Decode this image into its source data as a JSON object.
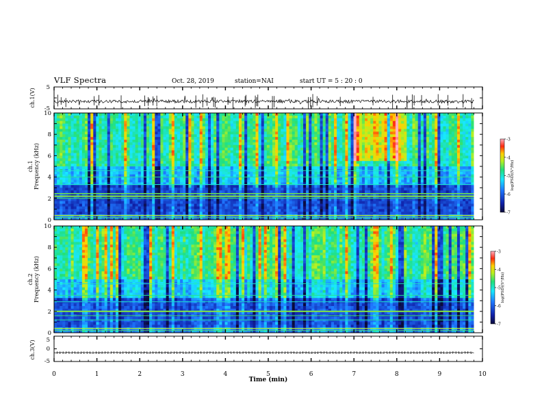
{
  "header": {
    "title": "VLF Spectra",
    "date": "Oct. 28, 2019",
    "station": "station=NAI",
    "start": "start UT = 5 : 20 : 0"
  },
  "chart_data": [
    {
      "type": "line",
      "name": "ch1-waveform",
      "ylabel": "ch.1(V)",
      "ylim": [
        -5,
        5
      ],
      "yticks": [
        "5",
        "-5"
      ],
      "xlim": [
        0,
        10
      ],
      "baseline": -1.6
    },
    {
      "type": "heatmap",
      "name": "ch1-spectrogram",
      "ylabel_channel": "ch.1",
      "ylabel": "Frequency (kHz)",
      "ylim": [
        0,
        10
      ],
      "yticks": [
        "0",
        "2",
        "4",
        "6",
        "8",
        "10"
      ],
      "xlim": [
        0,
        10
      ],
      "data_until_min": 9.8,
      "colorbar": {
        "label": "log(PSD)(V²/Hz)",
        "range": [
          -7,
          -3
        ],
        "ticks": [
          "-3",
          "-4",
          "-5",
          "-6",
          "-7"
        ]
      }
    },
    {
      "type": "heatmap",
      "name": "ch2-spectrogram",
      "ylabel_channel": "ch.2",
      "ylabel": "Frequency (kHz)",
      "ylim": [
        0,
        10
      ],
      "yticks": [
        "0",
        "2",
        "4",
        "6",
        "8",
        "10"
      ],
      "xlim": [
        0,
        10
      ],
      "data_until_min": 9.8,
      "colorbar": {
        "label": "log(PSD)(V²/Hz)",
        "range": [
          -7,
          -3
        ],
        "ticks": [
          "-3",
          "-4",
          "-5",
          "-6",
          "-7"
        ]
      }
    },
    {
      "type": "line",
      "name": "ch3-waveform",
      "ylabel": "ch.3(V)",
      "ylim": [
        -5,
        5
      ],
      "yticks": [
        "5",
        "0",
        "-5"
      ],
      "xlim": [
        0,
        10
      ],
      "baseline": -1.5,
      "xlabel": "Time (min)",
      "xticks": [
        "0",
        "1",
        "2",
        "3",
        "4",
        "5",
        "6",
        "7",
        "8",
        "9",
        "10"
      ]
    }
  ]
}
